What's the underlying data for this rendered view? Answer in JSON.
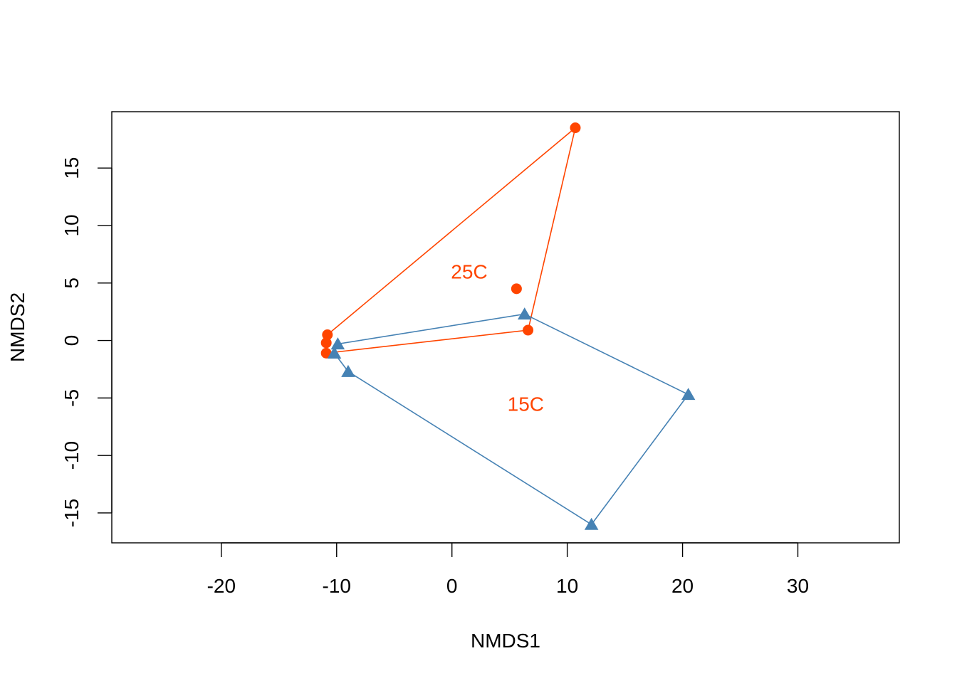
{
  "chart_data": {
    "type": "scatter",
    "xlabel": "NMDS1",
    "ylabel": "NMDS2",
    "xlim": [
      -29.5,
      38.8
    ],
    "ylim": [
      -17.6,
      19.9
    ],
    "x_ticks": [
      -20,
      -10,
      0,
      10,
      20,
      30
    ],
    "y_ticks": [
      -15,
      -10,
      -5,
      0,
      5,
      10,
      15
    ],
    "x_tick_labels": [
      "-20",
      "-10",
      "0",
      "10",
      "20",
      "30"
    ],
    "y_tick_labels": [
      "-15",
      "-10",
      "-5",
      "0",
      "5",
      "10",
      "15"
    ],
    "grid": false,
    "series": [
      {
        "marker": "circle",
        "color": "#FF4500",
        "points": [
          {
            "x": 10.7,
            "y": 18.5
          },
          {
            "x": 5.6,
            "y": 4.5
          },
          {
            "x": 6.6,
            "y": 0.9
          },
          {
            "x": -10.8,
            "y": 0.5
          },
          {
            "x": -10.9,
            "y": -0.2
          },
          {
            "x": -10.9,
            "y": -1.1
          }
        ],
        "hull": [
          {
            "x": 10.7,
            "y": 18.5
          },
          {
            "x": 6.6,
            "y": 0.9
          },
          {
            "x": -10.9,
            "y": -1.1
          },
          {
            "x": -10.9,
            "y": -0.2
          },
          {
            "x": -10.8,
            "y": 0.5
          }
        ]
      },
      {
        "marker": "triangle",
        "color": "#4682B4",
        "points": [
          {
            "x": 6.3,
            "y": 2.3
          },
          {
            "x": -9.9,
            "y": -0.3
          },
          {
            "x": -10.2,
            "y": -1.1
          },
          {
            "x": -9.0,
            "y": -2.7
          },
          {
            "x": 20.5,
            "y": -4.7
          },
          {
            "x": 12.1,
            "y": -16.0
          }
        ],
        "hull": [
          {
            "x": 6.3,
            "y": 2.3
          },
          {
            "x": 20.5,
            "y": -4.7
          },
          {
            "x": 12.1,
            "y": -16.0
          },
          {
            "x": -9.0,
            "y": -2.7
          },
          {
            "x": -10.2,
            "y": -1.1
          },
          {
            "x": -9.9,
            "y": -0.3
          }
        ]
      }
    ],
    "annotations": [
      {
        "text": "25C",
        "x": 1.5,
        "y": 6.0,
        "color": "#FF4500"
      },
      {
        "text": "15C",
        "x": 6.4,
        "y": -5.5,
        "color": "#FF4500"
      }
    ]
  }
}
